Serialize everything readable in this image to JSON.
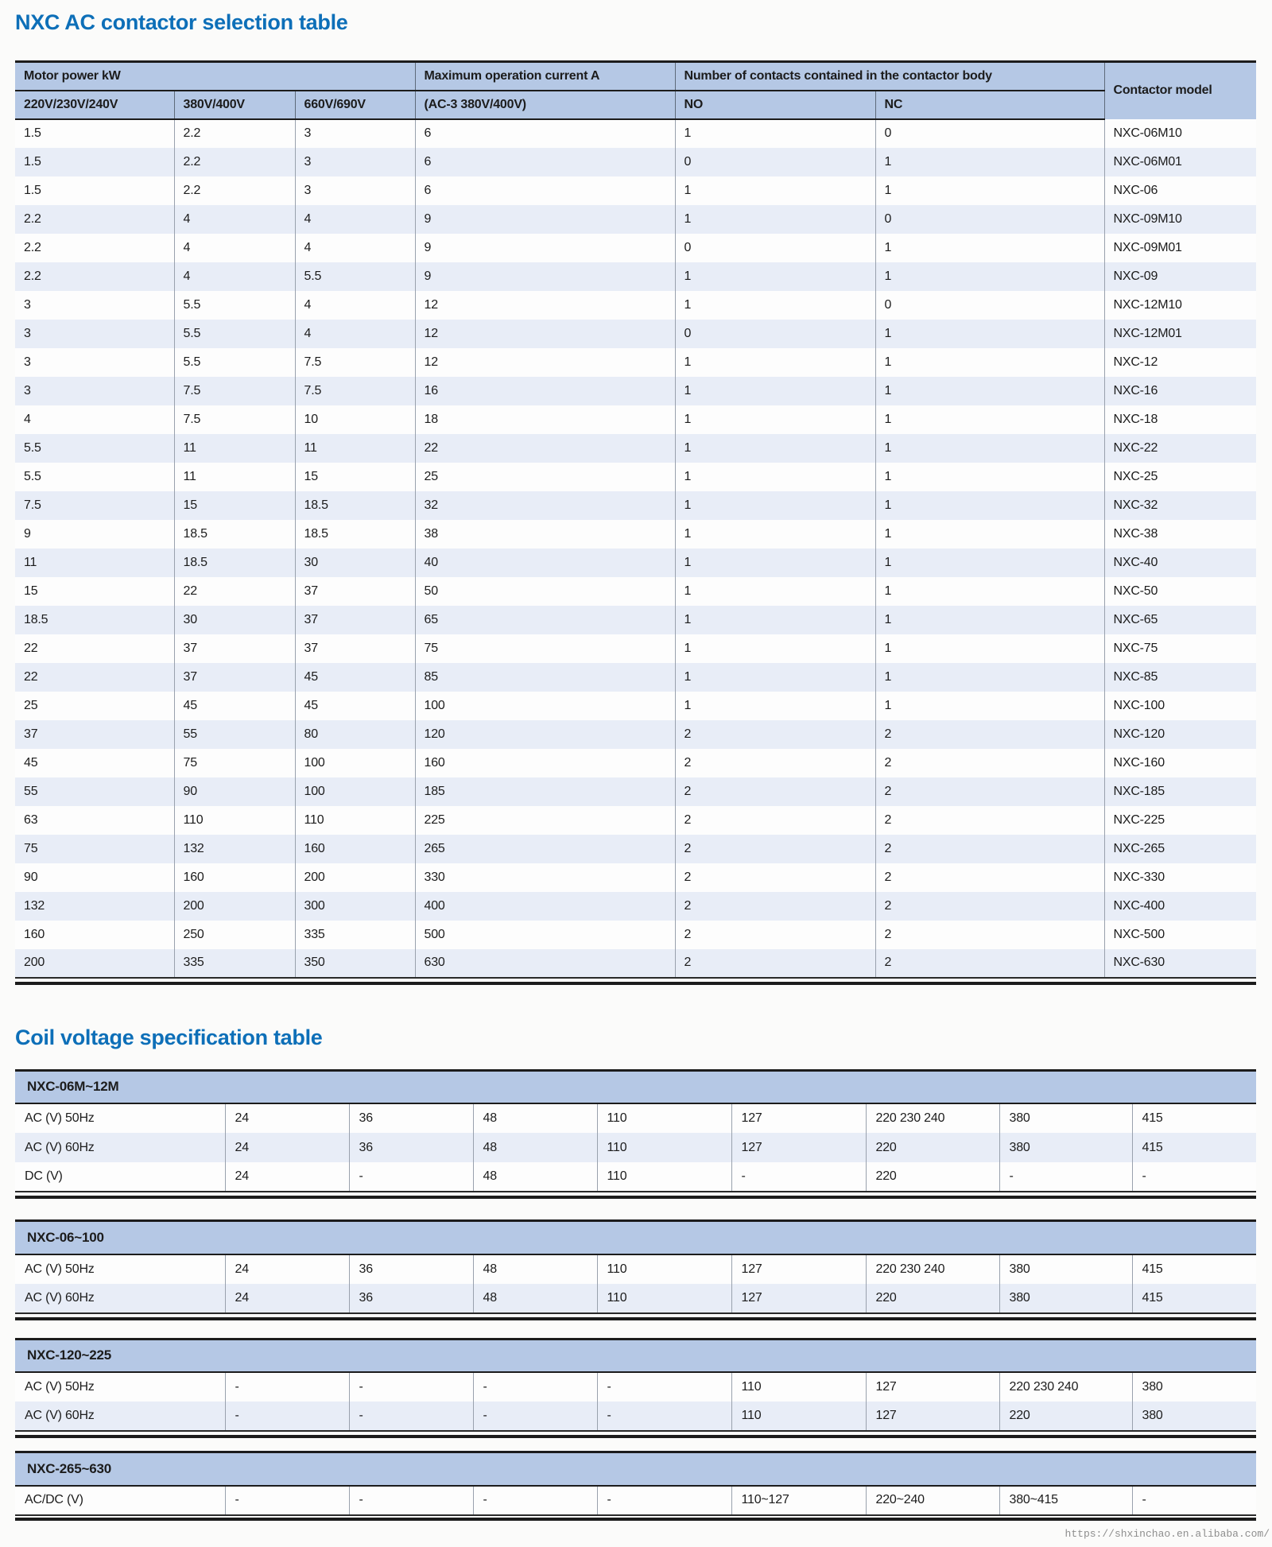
{
  "page": {
    "watermark": "https://shxinchao.en.alibaba.com/"
  },
  "theme": {
    "title_color": "#0d6fb8",
    "header_band_bg": "#b5c8e5",
    "stripe_bg": "#e8edf7",
    "rule_color": "#1c1c1c"
  },
  "selection_table": {
    "title": "NXC AC contactor selection table",
    "group_headers": {
      "motor_power": "Motor power kW",
      "max_current": "Maximum operation current A",
      "contacts": "Number of contacts contained in the contactor body",
      "model": "Contactor model"
    },
    "sub_headers": {
      "v220": "220V/230V/240V",
      "v380": "380V/400V",
      "v660": "660V/690V",
      "ac3": "(AC-3 380V/400V)",
      "no": "NO",
      "nc": "NC"
    },
    "rows": [
      [
        "1.5",
        "2.2",
        "3",
        "6",
        "1",
        "0",
        "NXC-06M10"
      ],
      [
        "1.5",
        "2.2",
        "3",
        "6",
        "0",
        "1",
        "NXC-06M01"
      ],
      [
        "1.5",
        "2.2",
        "3",
        "6",
        "1",
        "1",
        "NXC-06"
      ],
      [
        "2.2",
        "4",
        "4",
        "9",
        "1",
        "0",
        "NXC-09M10"
      ],
      [
        "2.2",
        "4",
        "4",
        "9",
        "0",
        "1",
        "NXC-09M01"
      ],
      [
        "2.2",
        "4",
        "5.5",
        "9",
        "1",
        "1",
        "NXC-09"
      ],
      [
        "3",
        "5.5",
        "4",
        "12",
        "1",
        "0",
        "NXC-12M10"
      ],
      [
        "3",
        "5.5",
        "4",
        "12",
        "0",
        "1",
        "NXC-12M01"
      ],
      [
        "3",
        "5.5",
        "7.5",
        "12",
        "1",
        "1",
        "NXC-12"
      ],
      [
        "3",
        "7.5",
        "7.5",
        "16",
        "1",
        "1",
        "NXC-16"
      ],
      [
        "4",
        "7.5",
        "10",
        "18",
        "1",
        "1",
        "NXC-18"
      ],
      [
        "5.5",
        "11",
        "11",
        "22",
        "1",
        "1",
        "NXC-22"
      ],
      [
        "5.5",
        "11",
        "15",
        "25",
        "1",
        "1",
        "NXC-25"
      ],
      [
        "7.5",
        "15",
        "18.5",
        "32",
        "1",
        "1",
        "NXC-32"
      ],
      [
        "9",
        "18.5",
        "18.5",
        "38",
        "1",
        "1",
        "NXC-38"
      ],
      [
        "11",
        "18.5",
        "30",
        "40",
        "1",
        "1",
        "NXC-40"
      ],
      [
        "15",
        "22",
        "37",
        "50",
        "1",
        "1",
        "NXC-50"
      ],
      [
        "18.5",
        "30",
        "37",
        "65",
        "1",
        "1",
        "NXC-65"
      ],
      [
        "22",
        "37",
        "37",
        "75",
        "1",
        "1",
        "NXC-75"
      ],
      [
        "22",
        "37",
        "45",
        "85",
        "1",
        "1",
        "NXC-85"
      ],
      [
        "25",
        "45",
        "45",
        "100",
        "1",
        "1",
        "NXC-100"
      ],
      [
        "37",
        "55",
        "80",
        "120",
        "2",
        "2",
        "NXC-120"
      ],
      [
        "45",
        "75",
        "100",
        "160",
        "2",
        "2",
        "NXC-160"
      ],
      [
        "55",
        "90",
        "100",
        "185",
        "2",
        "2",
        "NXC-185"
      ],
      [
        "63",
        "110",
        "110",
        "225",
        "2",
        "2",
        "NXC-225"
      ],
      [
        "75",
        "132",
        "160",
        "265",
        "2",
        "2",
        "NXC-265"
      ],
      [
        "90",
        "160",
        "200",
        "330",
        "2",
        "2",
        "NXC-330"
      ],
      [
        "132",
        "200",
        "300",
        "400",
        "2",
        "2",
        "NXC-400"
      ],
      [
        "160",
        "250",
        "335",
        "500",
        "2",
        "2",
        "NXC-500"
      ],
      [
        "200",
        "335",
        "350",
        "630",
        "2",
        "2",
        "NXC-630"
      ]
    ]
  },
  "coil_section": {
    "title": "Coil voltage specification table",
    "tables": [
      {
        "name": "NXC-06M~12M",
        "rows": [
          {
            "label": "AC (V) 50Hz",
            "values": [
              "24",
              "36",
              "48",
              "110",
              "127",
              "220 230 240",
              "380",
              "415"
            ]
          },
          {
            "label": "AC (V) 60Hz",
            "values": [
              "24",
              "36",
              "48",
              "110",
              "127",
              "220",
              "380",
              "415"
            ]
          },
          {
            "label": "DC (V)",
            "values": [
              "24",
              "-",
              "48",
              "110",
              "-",
              "220",
              "-",
              "-"
            ]
          }
        ]
      },
      {
        "name": "NXC-06~100",
        "rows": [
          {
            "label": "AC (V) 50Hz",
            "values": [
              "24",
              "36",
              "48",
              "110",
              "127",
              "220 230 240",
              "380",
              "415"
            ]
          },
          {
            "label": "AC (V) 60Hz",
            "values": [
              "24",
              "36",
              "48",
              "110",
              "127",
              "220",
              "380",
              "415"
            ]
          }
        ]
      },
      {
        "name": "NXC-120~225",
        "rows": [
          {
            "label": "AC (V) 50Hz",
            "values": [
              "-",
              "-",
              "-",
              "-",
              "110",
              "127",
              "220 230 240",
              "380"
            ]
          },
          {
            "label": "AC (V) 60Hz",
            "values": [
              "-",
              "-",
              "-",
              "-",
              "110",
              "127",
              "220",
              "380"
            ]
          }
        ]
      },
      {
        "name": "NXC-265~630",
        "rows": [
          {
            "label": "AC/DC (V)",
            "values": [
              "-",
              "-",
              "-",
              "-",
              "110~127",
              "220~240",
              "380~415",
              "-"
            ]
          }
        ]
      }
    ]
  }
}
